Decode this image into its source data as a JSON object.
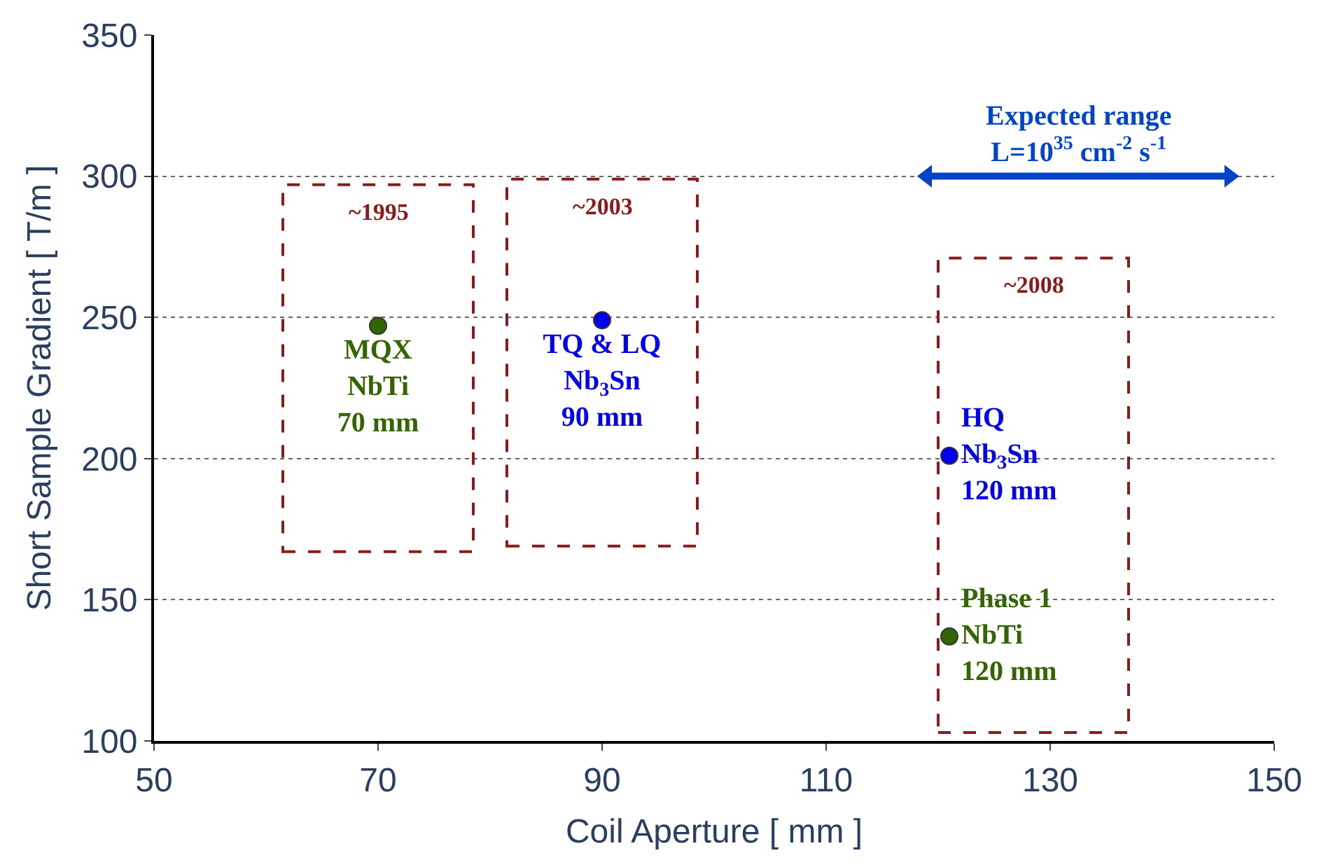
{
  "chart_data": {
    "type": "scatter",
    "xlabel": "Coil Aperture [ mm ]",
    "ylabel": "Short Sample Gradient [ T/m ]",
    "xlim": [
      50,
      150
    ],
    "xticks": [
      50,
      70,
      90,
      110,
      130,
      150
    ],
    "ylim": [
      100,
      350
    ],
    "yticks": [
      100,
      150,
      200,
      250,
      300,
      350
    ],
    "grid": "y",
    "marker": "circle",
    "series": [
      {
        "name": "MQX\nNbTi\n70 mm",
        "color": "#336600",
        "x": [
          70
        ],
        "values": [
          247
        ]
      },
      {
        "name": "TQ & LQ\nNb$_{3}$Sn\n90 mm",
        "color": "#0000ee",
        "x": [
          90
        ],
        "values": [
          249
        ]
      },
      {
        "name": "HQ\nNb$_{3}$Sn\n120 mm",
        "color": "#0000ee",
        "x": [
          121
        ],
        "values": [
          201
        ]
      },
      {
        "name": "Phase 1\nNbTi\n120 mm",
        "color": "#336600",
        "x": [
          121
        ],
        "values": [
          137
        ]
      },
      {
        "name": "Expected range\nL=10$^{35}$ cm$^{-2}$ s$^{-1}$",
        "color": "#0044cc",
        "type": "line",
        "marker": "triangle",
        "x": [
          119,
          146
        ],
        "values": [
          300,
          300
        ]
      }
    ],
    "annotations": [
      "~1995",
      "~2003",
      "~2008"
    ]
  }
}
